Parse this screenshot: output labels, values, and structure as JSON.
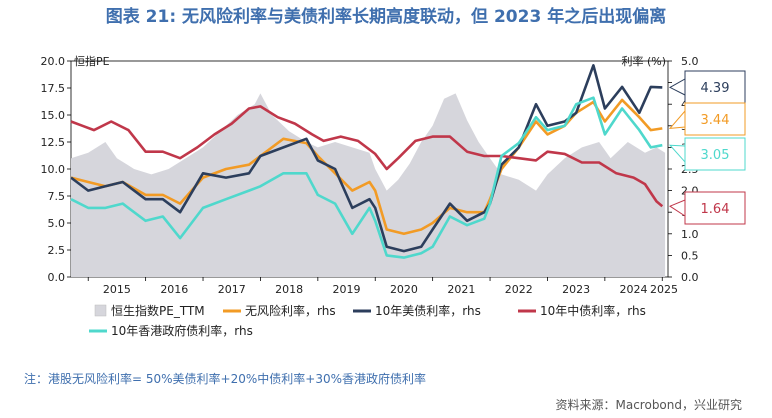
{
  "chart_data": {
    "type": "line",
    "title": "图表 21: 无风险利率与美债利率长期高度联动，但 2023 年之后出现偏离",
    "left_axis_label": "恒指PE",
    "right_axis_label": "利率 (%)",
    "left_ylim": [
      0,
      20
    ],
    "left_ticks": [
      "0.0",
      "2.5",
      "5.0",
      "7.5",
      "10.0",
      "12.5",
      "15.0",
      "17.5",
      "20.0"
    ],
    "right_ylim": [
      0,
      5
    ],
    "right_ticks": [
      "0.0",
      "0.5",
      "1.0",
      "1.5",
      "2.0",
      "2.5",
      "3.0",
      "3.5",
      "4.0",
      "4.5",
      "5.0"
    ],
    "x_range": [
      2014.7,
      2025.1
    ],
    "x_ticks": [
      "2015",
      "2016",
      "2017",
      "2018",
      "2019",
      "2020",
      "2021",
      "2022",
      "2023",
      "2024",
      "2025"
    ],
    "series": [
      {
        "name": "恒生指数PE_TTM",
        "axis": "left",
        "kind": "area",
        "color": "#d6d6dc",
        "x": [
          2014.7,
          2015.0,
          2015.3,
          2015.5,
          2015.8,
          2016.1,
          2016.4,
          2016.7,
          2017.0,
          2017.3,
          2017.6,
          2017.9,
          2018.0,
          2018.2,
          2018.5,
          2018.8,
          2019.0,
          2019.3,
          2019.6,
          2019.9,
          2020.0,
          2020.2,
          2020.4,
          2020.6,
          2020.8,
          2021.0,
          2021.2,
          2021.4,
          2021.6,
          2021.8,
          2022.0,
          2022.2,
          2022.5,
          2022.8,
          2023.0,
          2023.3,
          2023.6,
          2023.9,
          2024.1,
          2024.4,
          2024.7,
          2024.9,
          2025.05
        ],
        "y": [
          11.0,
          11.5,
          12.5,
          11.0,
          10.0,
          9.5,
          10.0,
          11.0,
          12.0,
          13.5,
          15.0,
          16.0,
          17.0,
          15.0,
          13.5,
          12.5,
          12.0,
          12.5,
          12.0,
          11.5,
          10.0,
          8.0,
          9.0,
          10.5,
          12.5,
          14.0,
          16.5,
          17.0,
          14.5,
          12.5,
          11.0,
          9.5,
          9.0,
          8.0,
          9.5,
          11.0,
          12.0,
          12.5,
          11.0,
          12.5,
          11.5,
          12.0,
          11.5
        ]
      },
      {
        "name": "无风险利率，rhs",
        "axis": "right",
        "kind": "line",
        "color": "#f29b25",
        "x": [
          2014.7,
          2015.0,
          2015.3,
          2015.6,
          2016.0,
          2016.3,
          2016.6,
          2017.0,
          2017.4,
          2017.8,
          2018.0,
          2018.4,
          2018.8,
          2019.0,
          2019.3,
          2019.6,
          2019.9,
          2020.0,
          2020.2,
          2020.5,
          2020.8,
          2021.0,
          2021.3,
          2021.6,
          2021.9,
          2022.0,
          2022.2,
          2022.5,
          2022.8,
          2023.0,
          2023.3,
          2023.5,
          2023.8,
          2024.0,
          2024.3,
          2024.6,
          2024.8,
          2025.0
        ],
        "y": [
          2.3,
          2.2,
          2.1,
          2.2,
          1.9,
          1.9,
          1.7,
          2.3,
          2.5,
          2.6,
          2.8,
          3.2,
          3.1,
          2.8,
          2.4,
          2.0,
          2.2,
          2.0,
          1.1,
          1.0,
          1.1,
          1.25,
          1.6,
          1.5,
          1.5,
          1.8,
          2.5,
          3.0,
          3.6,
          3.3,
          3.5,
          3.8,
          4.05,
          3.6,
          4.1,
          3.7,
          3.4,
          3.44
        ]
      },
      {
        "name": "10年美债利率，rhs",
        "axis": "right",
        "kind": "line",
        "color": "#2c3e5c",
        "x": [
          2014.7,
          2015.0,
          2015.3,
          2015.6,
          2016.0,
          2016.3,
          2016.6,
          2017.0,
          2017.4,
          2017.8,
          2018.0,
          2018.4,
          2018.8,
          2019.0,
          2019.3,
          2019.6,
          2019.9,
          2020.0,
          2020.2,
          2020.5,
          2020.8,
          2021.0,
          2021.3,
          2021.6,
          2021.9,
          2022.0,
          2022.2,
          2022.5,
          2022.8,
          2023.0,
          2023.3,
          2023.5,
          2023.8,
          2024.0,
          2024.3,
          2024.6,
          2024.8,
          2025.0
        ],
        "y": [
          2.3,
          2.0,
          2.1,
          2.2,
          1.8,
          1.8,
          1.5,
          2.4,
          2.3,
          2.4,
          2.8,
          3.0,
          3.2,
          2.7,
          2.5,
          1.6,
          1.8,
          1.6,
          0.7,
          0.6,
          0.7,
          1.1,
          1.7,
          1.3,
          1.5,
          1.7,
          2.6,
          3.0,
          4.0,
          3.5,
          3.6,
          3.8,
          4.9,
          3.9,
          4.4,
          3.8,
          4.4,
          4.39
        ]
      },
      {
        "name": "10年中债利率，rhs",
        "axis": "right",
        "kind": "line",
        "color": "#c0374a",
        "x": [
          2014.7,
          2014.9,
          2015.1,
          2015.4,
          2015.7,
          2016.0,
          2016.3,
          2016.6,
          2016.9,
          2017.2,
          2017.5,
          2017.8,
          2018.0,
          2018.3,
          2018.6,
          2018.9,
          2019.1,
          2019.4,
          2019.7,
          2020.0,
          2020.2,
          2020.4,
          2020.7,
          2021.0,
          2021.3,
          2021.6,
          2021.9,
          2022.2,
          2022.5,
          2022.8,
          2023.0,
          2023.3,
          2023.6,
          2023.9,
          2024.2,
          2024.5,
          2024.7,
          2024.9,
          2025.0
        ],
        "y": [
          3.6,
          3.5,
          3.4,
          3.6,
          3.4,
          2.9,
          2.9,
          2.75,
          3.0,
          3.3,
          3.55,
          3.9,
          3.95,
          3.7,
          3.55,
          3.3,
          3.15,
          3.25,
          3.15,
          2.85,
          2.5,
          2.75,
          3.15,
          3.25,
          3.25,
          2.9,
          2.8,
          2.8,
          2.75,
          2.7,
          2.9,
          2.85,
          2.65,
          2.65,
          2.4,
          2.3,
          2.15,
          1.75,
          1.64
        ]
      },
      {
        "name": "10年香港政府债利率，rhs",
        "axis": "right",
        "kind": "line",
        "color": "#4fd8cc",
        "x": [
          2014.7,
          2015.0,
          2015.3,
          2015.6,
          2016.0,
          2016.3,
          2016.6,
          2017.0,
          2017.4,
          2017.8,
          2018.0,
          2018.4,
          2018.8,
          2019.0,
          2019.3,
          2019.6,
          2019.9,
          2020.0,
          2020.2,
          2020.5,
          2020.8,
          2021.0,
          2021.3,
          2021.6,
          2021.9,
          2022.0,
          2022.2,
          2022.5,
          2022.8,
          2023.0,
          2023.3,
          2023.5,
          2023.8,
          2024.0,
          2024.3,
          2024.6,
          2024.8,
          2025.0
        ],
        "y": [
          1.8,
          1.6,
          1.6,
          1.7,
          1.3,
          1.4,
          0.9,
          1.6,
          1.8,
          2.0,
          2.1,
          2.4,
          2.4,
          1.9,
          1.7,
          1.0,
          1.6,
          1.3,
          0.5,
          0.45,
          0.55,
          0.7,
          1.4,
          1.2,
          1.35,
          1.7,
          2.8,
          3.1,
          3.7,
          3.4,
          3.5,
          4.0,
          4.15,
          3.3,
          3.9,
          3.4,
          3.0,
          3.05
        ]
      }
    ],
    "end_labels": [
      {
        "series": 2,
        "text": "4.39",
        "color": "#2c3e5c",
        "value": 4.39
      },
      {
        "series": 1,
        "text": "3.44",
        "color": "#f29b25",
        "value": 3.44
      },
      {
        "series": 4,
        "text": "3.05",
        "color": "#4fd8cc",
        "value": 3.05
      },
      {
        "series": 3,
        "text": "1.64",
        "color": "#c0374a",
        "value": 1.64
      }
    ],
    "legend": [
      {
        "label": "恒生指数PE_TTM",
        "color": "#d6d6dc",
        "kind": "box"
      },
      {
        "label": "无风险利率，rhs",
        "color": "#f29b25",
        "kind": "line"
      },
      {
        "label": "10年美债利率，rhs",
        "color": "#2c3e5c",
        "kind": "line"
      },
      {
        "label": "10年中债利率，rhs",
        "color": "#c0374a",
        "kind": "line"
      },
      {
        "label": "10年香港政府债利率，rhs",
        "color": "#4fd8cc",
        "kind": "line"
      }
    ]
  },
  "note": "注：港股无风险利率= 50%美债利率+20%中债利率+30%香港政府债利率",
  "source": "资料来源：Macrobond，兴业研究"
}
